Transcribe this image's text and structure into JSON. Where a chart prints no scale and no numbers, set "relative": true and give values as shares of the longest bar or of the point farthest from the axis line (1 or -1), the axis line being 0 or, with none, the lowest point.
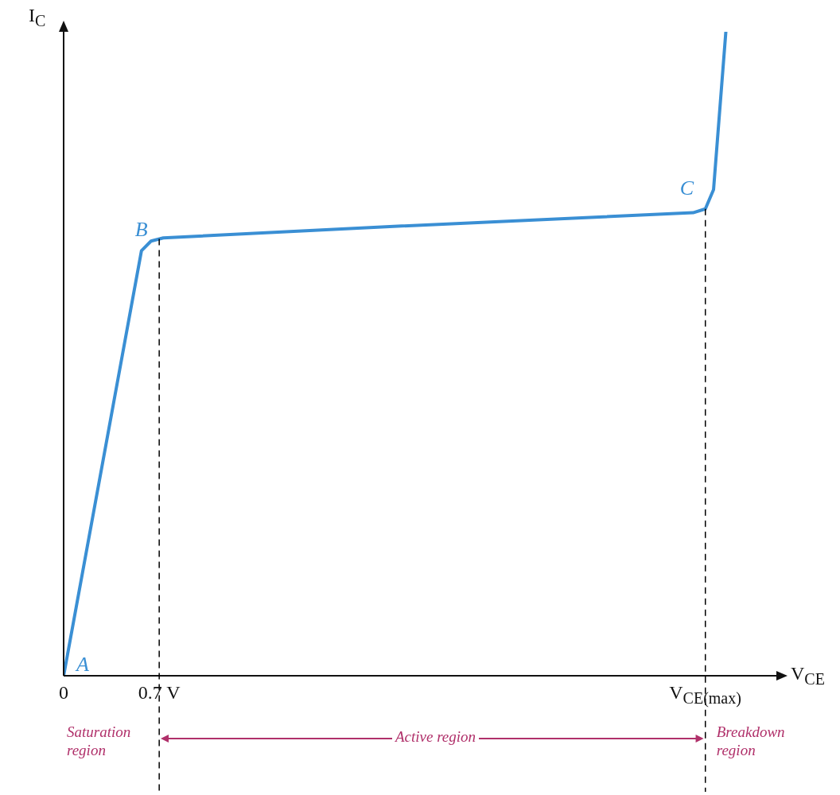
{
  "chart_data": {
    "type": "line",
    "relative": true,
    "xlabel": "V$_{CE}$",
    "ylabel": "I$_{C}$",
    "x": [
      0,
      0.57,
      0.64,
      0.73,
      2.33,
      4.61,
      4.7,
      4.76,
      4.85
    ],
    "series": [
      {
        "color": "#3a8fd4",
        "values": [
          0,
          0.66,
          0.675,
          0.68,
          0.697,
          0.719,
          0.725,
          0.755,
          1.0
        ]
      }
    ],
    "xlim": [
      0,
      5.22
    ],
    "xticks": [
      {
        "value": 0,
        "label": "0"
      },
      {
        "value": 0.7,
        "label": "0.7 V"
      },
      {
        "value": 4.7,
        "label": "V$_{CE(max)}$"
      }
    ],
    "ref_lines": [
      {
        "axis": "x",
        "value": 0.7,
        "color": "#000000",
        "line_style": "dashed"
      },
      {
        "axis": "x",
        "value": 4.7,
        "color": "#000000",
        "line_style": "dashed"
      }
    ],
    "annotations": [
      {
        "text": "A",
        "x": 0,
        "y": 0
      },
      {
        "text": "B",
        "x": 0.57,
        "y": 0.66
      },
      {
        "text": "C",
        "x": 4.7,
        "y": 0.725
      },
      "Saturation region",
      "Active region",
      "Breakdown region"
    ],
    "grid": false,
    "legend": false,
    "marker": "none",
    "line_style": "solid"
  }
}
